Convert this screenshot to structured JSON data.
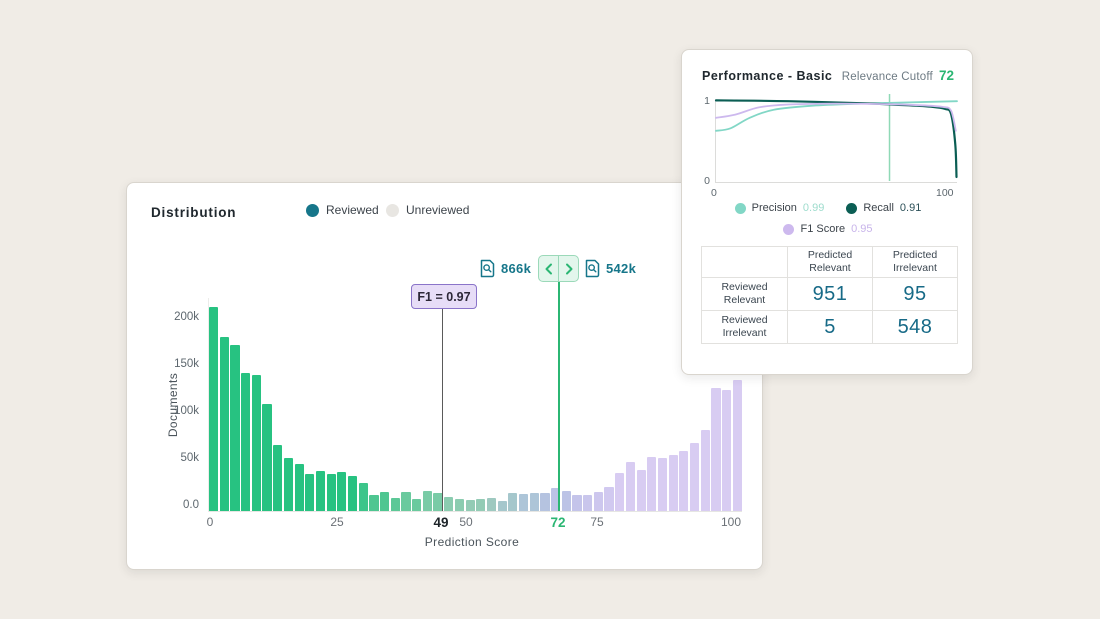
{
  "distribution_panel": {
    "title": "Distribution",
    "legend": [
      {
        "label": "Reviewed",
        "color": "#16768a"
      },
      {
        "label": "Unreviewed",
        "color": "#e8e6e2"
      }
    ],
    "left_doc_count": "866k",
    "right_doc_count": "542k",
    "f1_annotation": "F1 = 0.97",
    "f1_score_position": "49",
    "relevance_cutoff_position": "72",
    "ylabel": "Documents",
    "xlabel": "Prediction Score",
    "y_ticks": [
      "200k",
      "150k",
      "100k",
      "50k",
      "0.0"
    ],
    "x_ticks": [
      "0",
      "25",
      "50",
      "75",
      "100"
    ],
    "chart_data": {
      "type": "bar",
      "title": "Distribution",
      "xlabel": "Prediction Score",
      "ylabel": "Documents",
      "x_range": [
        0,
        100
      ],
      "bin_width": 2,
      "ylim_k": [
        0,
        230
      ],
      "values_k": [
        220,
        188,
        179,
        149,
        147,
        116,
        71,
        57,
        51,
        40,
        43,
        40,
        42,
        38,
        30,
        17,
        20,
        14,
        21,
        13,
        22,
        19,
        15,
        13,
        12,
        13,
        14,
        11,
        19,
        18,
        19,
        19,
        25,
        22,
        17,
        17,
        21,
        26,
        41,
        53,
        44,
        58,
        57,
        61,
        65,
        73,
        88,
        133,
        131,
        142
      ],
      "bar_colors": [
        "#27c281",
        "#27c281",
        "#27c281",
        "#27c281",
        "#27c281",
        "#27c281",
        "#27c281",
        "#27c281",
        "#27c281",
        "#27c281",
        "#27c281",
        "#27c281",
        "#27c281",
        "#27c281",
        "#3cc58a",
        "#4ec691",
        "#4ec691",
        "#5cc897",
        "#6aca9e",
        "#6aca9e",
        "#79cba6",
        "#79cba6",
        "#8bccb0",
        "#8bccb0",
        "#93cbb5",
        "#93cbb5",
        "#9ec9c0",
        "#a5c7cc",
        "#a5c7cc",
        "#adc5d8",
        "#adc5d8",
        "#b5c3e0",
        "#bcc3e6",
        "#bcc3e6",
        "#c4c4ea",
        "#c9c6ec",
        "#cdc7ee",
        "#d1c9f0",
        "#d8ccf2",
        "#d8ccf2",
        "#d8ccf2",
        "#d8ccf2",
        "#d8ccf2",
        "#d8ccf2",
        "#d8ccf2",
        "#d8ccf2",
        "#d8ccf2",
        "#d8ccf2",
        "#d8ccf2",
        "#d8ccf2"
      ],
      "annotations": [
        {
          "x": 49,
          "label": "F1 = 0.97",
          "line_color": "#5a5a5a"
        },
        {
          "x": 72,
          "label": "72",
          "line_color": "#2bb673"
        }
      ]
    }
  },
  "performance_panel": {
    "title": "Performance - Basic",
    "cutoff_label": "Relevance Cutoff",
    "cutoff_value": "72",
    "y_tick_top": "1",
    "y_tick_bottom": "0",
    "x_tick_left": "0",
    "x_tick_right": "100",
    "legend": [
      {
        "label": "Precision",
        "value": "0.99",
        "color": "#82d7c6"
      },
      {
        "label": "Recall",
        "value": "0.91",
        "color": "#0b5e54"
      },
      {
        "label": "F1 Score",
        "value": "0.95",
        "color": "#cdb9ee"
      }
    ],
    "chart_data": {
      "type": "line",
      "xlim": [
        0,
        100
      ],
      "ylim": [
        0,
        1
      ],
      "cutoff_x": 72,
      "cutoff_line_color": "#8fd9b6",
      "series": [
        {
          "name": "Precision",
          "metric_value": 0.99,
          "color": "#82d7c6",
          "points": [
            [
              0,
              0.62
            ],
            [
              6,
              0.65
            ],
            [
              14,
              0.78
            ],
            [
              24,
              0.88
            ],
            [
              40,
              0.93
            ],
            [
              60,
              0.955
            ],
            [
              80,
              0.97
            ],
            [
              100,
              0.985
            ]
          ]
        },
        {
          "name": "Recall",
          "metric_value": 0.91,
          "color": "#0b5e54",
          "points": [
            [
              0,
              0.995
            ],
            [
              30,
              0.985
            ],
            [
              60,
              0.96
            ],
            [
              80,
              0.935
            ],
            [
              90,
              0.915
            ],
            [
              95,
              0.89
            ],
            [
              97.5,
              0.83
            ],
            [
              99.3,
              0.45
            ],
            [
              99.8,
              0.05
            ]
          ]
        },
        {
          "name": "F1 Score",
          "metric_value": 0.95,
          "color": "#cdb9ee",
          "points": [
            [
              0,
              0.78
            ],
            [
              8,
              0.82
            ],
            [
              18,
              0.91
            ],
            [
              30,
              0.945
            ],
            [
              50,
              0.955
            ],
            [
              70,
              0.95
            ],
            [
              85,
              0.935
            ],
            [
              94,
              0.915
            ],
            [
              97.5,
              0.87
            ],
            [
              99.5,
              0.62
            ]
          ]
        }
      ]
    },
    "table": {
      "col_headers": [
        "Predicted Relevant",
        "Predicted Irrelevant"
      ],
      "rows": [
        {
          "header": "Reviewed Relevant",
          "values": [
            "951",
            "95"
          ]
        },
        {
          "header": "Reviewed Irrelevant",
          "values": [
            "5",
            "548"
          ]
        }
      ]
    }
  }
}
